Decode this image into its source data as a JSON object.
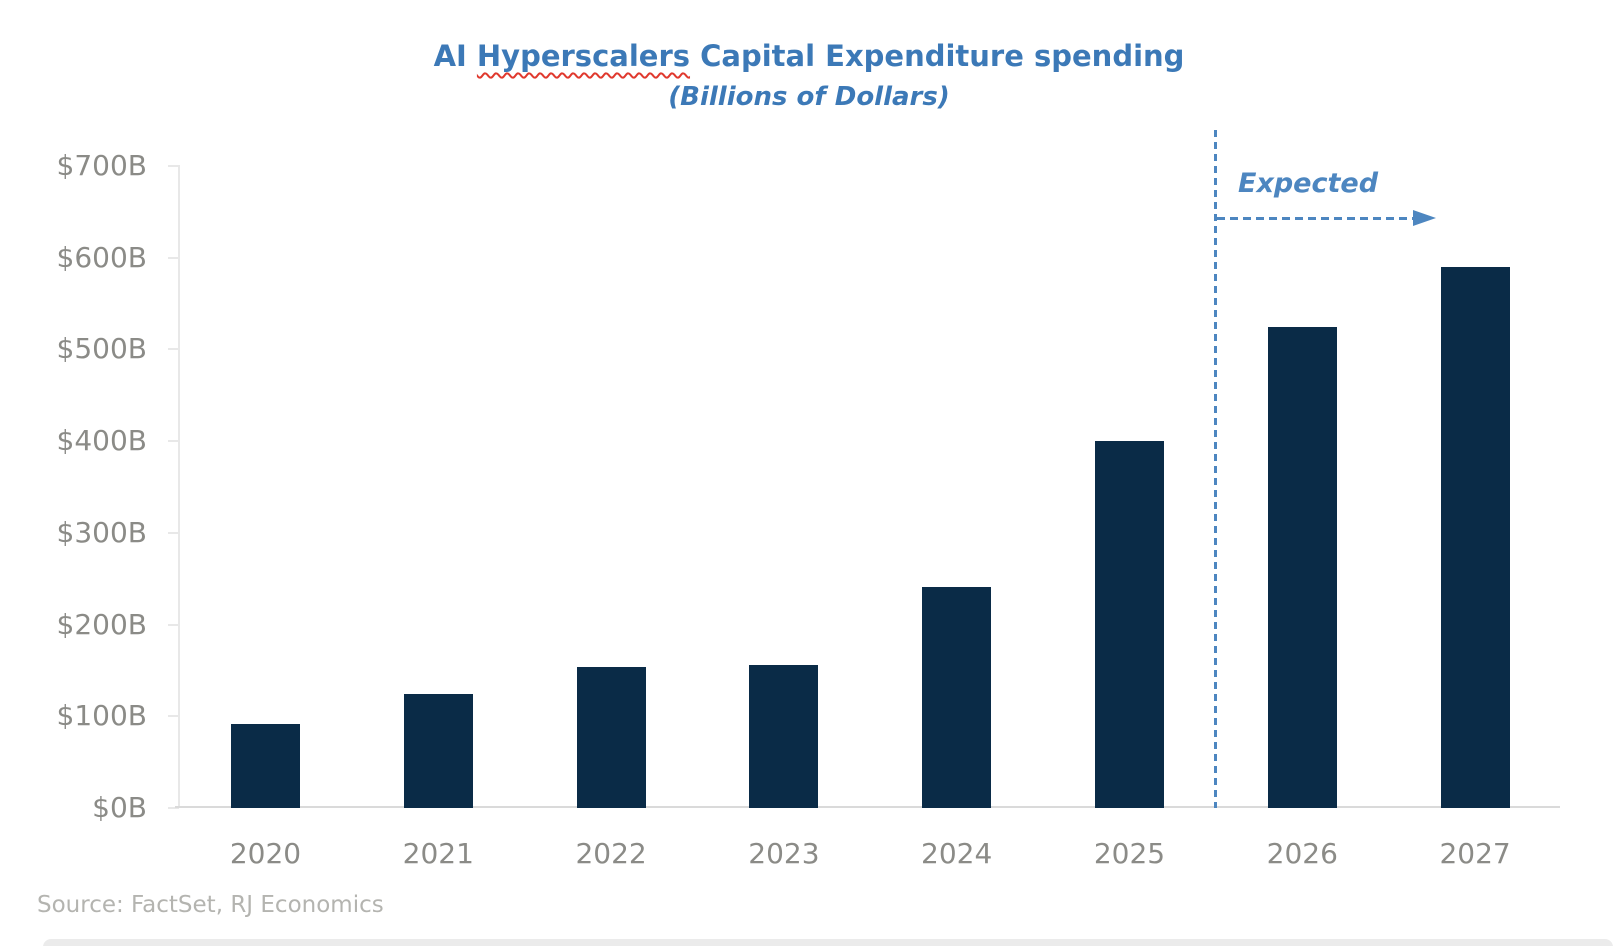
{
  "title": {
    "prefix": "AI ",
    "misspelled_word": "Hyperscalers",
    "suffix": " Capital Expenditure spending",
    "subtitle": "(Billions of Dollars)"
  },
  "annotation": {
    "label": "Expected"
  },
  "source": {
    "text": "Source: FactSet, RJ Economics"
  },
  "colors": {
    "title_blue": "#3c79b7",
    "annotation_blue": "#4d86c0",
    "bar_navy": "#0a2b47",
    "axis_label_gray": "#8b8b87",
    "axis_line_gray": "#e8e8e8",
    "baseline_gray": "#dadada",
    "source_gray": "#b4b4b0",
    "spellcheck_red": "#e0392e"
  },
  "chart_data": {
    "type": "bar",
    "title": "AI Hyperscalers Capital Expenditure spending",
    "subtitle": "(Billions of Dollars)",
    "xlabel": "",
    "ylabel": "",
    "categories": [
      "2020",
      "2021",
      "2022",
      "2023",
      "2024",
      "2025",
      "2026",
      "2027"
    ],
    "values": [
      92,
      124,
      154,
      156,
      241,
      400,
      525,
      590
    ],
    "ylim": [
      0,
      700
    ],
    "y_ticks": [
      {
        "value": 0,
        "label": "$0B"
      },
      {
        "value": 100,
        "label": "$100B"
      },
      {
        "value": 200,
        "label": "$200B"
      },
      {
        "value": 300,
        "label": "$300B"
      },
      {
        "value": 400,
        "label": "$400B"
      },
      {
        "value": 500,
        "label": "$500B"
      },
      {
        "value": 600,
        "label": "$600B"
      },
      {
        "value": 700,
        "label": "$700B"
      }
    ],
    "grid": false,
    "legend": "none",
    "expected_divider_after_category": "2025",
    "expected_categories": [
      "2026",
      "2027"
    ],
    "annotation_label": "Expected"
  }
}
